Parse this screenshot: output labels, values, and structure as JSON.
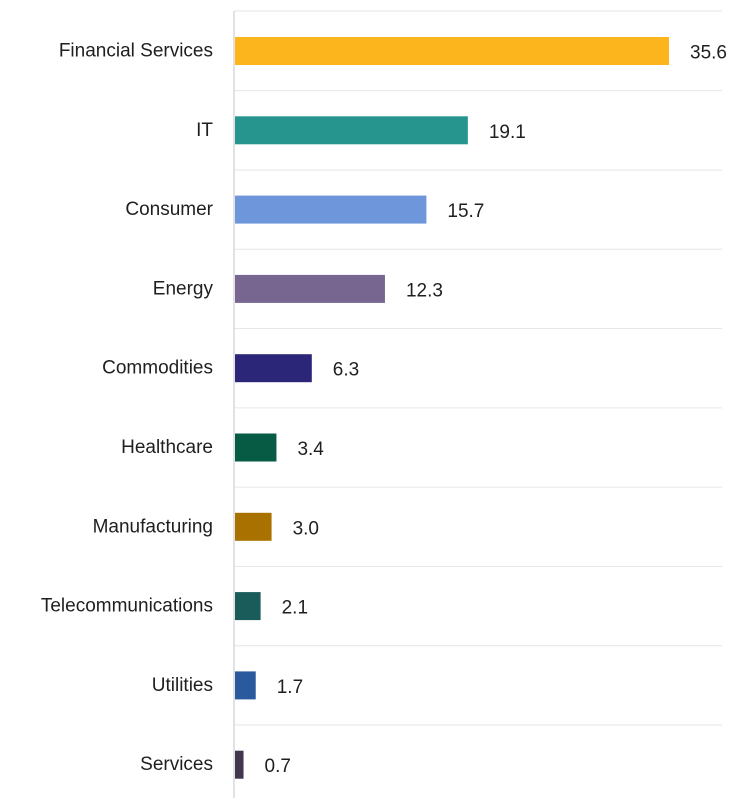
{
  "chart_data": {
    "type": "bar",
    "orientation": "horizontal",
    "categories": [
      "Financial Services",
      "IT",
      "Consumer",
      "Energy",
      "Commodities",
      "Healthcare",
      "Manufacturing",
      "Telecommunications",
      "Utilities",
      "Services"
    ],
    "values": [
      35.6,
      19.1,
      15.7,
      12.3,
      6.3,
      3.4,
      3.0,
      2.1,
      1.7,
      0.7
    ],
    "value_labels": [
      "35.6",
      "19.1",
      "15.7",
      "12.3",
      "6.3",
      "3.4",
      "3.0",
      "2.1",
      "1.7",
      "0.7"
    ],
    "colors": [
      "#FDB51D",
      "#26958D",
      "#6D96DB",
      "#766690",
      "#2C2678",
      "#075A44",
      "#A97200",
      "#1A5C5A",
      "#2A5A9E",
      "#433750"
    ],
    "xlim": [
      0,
      35.6
    ],
    "title": "",
    "xlabel": "",
    "ylabel": "",
    "grid": true,
    "legend": "none"
  }
}
